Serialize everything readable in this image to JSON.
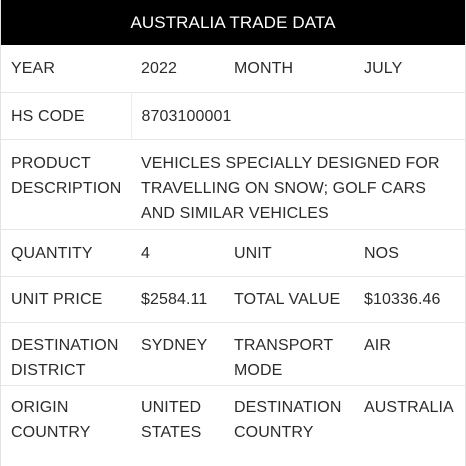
{
  "header": {
    "title": "AUSTRALIA TRADE DATA"
  },
  "rows": {
    "year_label": "YEAR",
    "year_value": "2022",
    "month_label": "MONTH",
    "month_value": "JULY",
    "hs_code_label": "HS CODE",
    "hs_code_value": "8703100001",
    "product_description_label": "PRODUCT DESCRIPTION",
    "product_description_value": "VEHICLES SPECIALLY DESIGNED FOR TRAVELLING ON SNOW; GOLF CARS AND SIMILAR VEHICLES",
    "quantity_label": "QUANTITY",
    "quantity_value": "4",
    "unit_label": "UNIT",
    "unit_value": "NOS",
    "unit_price_label": "UNIT PRICE",
    "unit_price_value": "$2584.11",
    "total_value_label": "TOTAL VALUE",
    "total_value_value": "$10336.46",
    "destination_district_label": "DESTINATION DISTRICT",
    "destination_district_value": "SYDNEY",
    "transport_mode_label": "TRANSPORT MODE",
    "transport_mode_value": "AIR",
    "origin_country_label": "ORIGIN COUNTRY",
    "origin_country_value": "UNITED STATES",
    "destination_country_label": "DESTINATION COUNTRY",
    "destination_country_value": "AUSTRALIA"
  },
  "colors": {
    "header_bg": "#000000",
    "header_text": "#ffffff",
    "text": "#2b2b2b",
    "divider": "#e6e6e6"
  }
}
